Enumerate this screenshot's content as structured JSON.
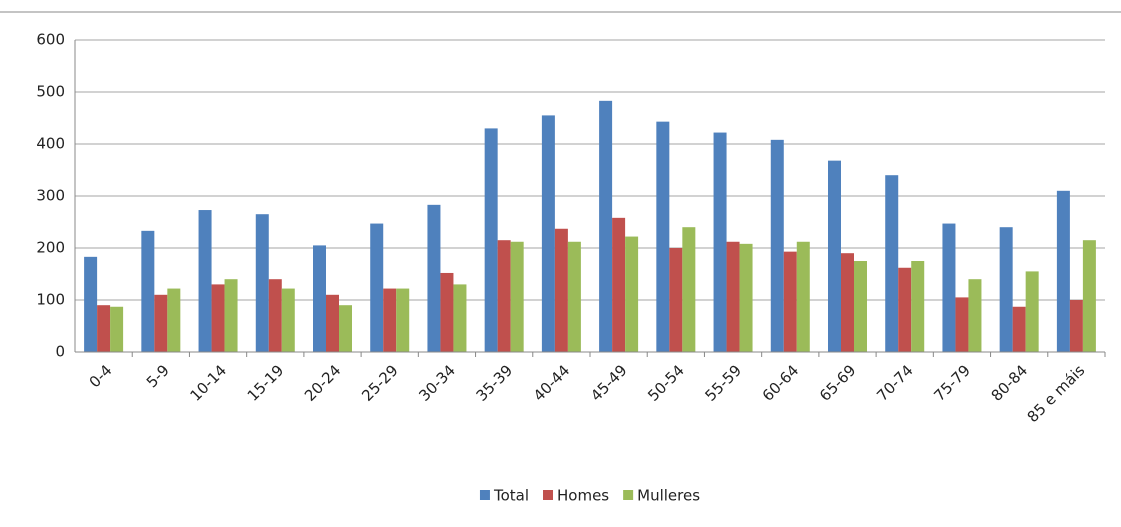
{
  "chart_data": {
    "type": "bar",
    "categories": [
      "0-4",
      "5-9",
      "10-14",
      "15-19",
      "20-24",
      "25-29",
      "30-34",
      "35-39",
      "40-44",
      "45-49",
      "50-54",
      "55-59",
      "60-64",
      "65-69",
      "70-74",
      "75-79",
      "80-84",
      "85 e máis"
    ],
    "series": [
      {
        "name": "Total",
        "color": "#4f81bd",
        "values": [
          183,
          233,
          273,
          265,
          205,
          247,
          283,
          430,
          455,
          483,
          443,
          422,
          408,
          368,
          340,
          247,
          240,
          310
        ]
      },
      {
        "name": "Homes",
        "color": "#c0504d",
        "values": [
          90,
          110,
          130,
          140,
          110,
          122,
          152,
          215,
          237,
          258,
          200,
          212,
          193,
          190,
          162,
          105,
          87,
          100
        ]
      },
      {
        "name": "Mulleres",
        "color": "#9bbb59",
        "values": [
          87,
          122,
          140,
          122,
          90,
          122,
          130,
          212,
          212,
          222,
          240,
          208,
          212,
          175,
          175,
          140,
          155,
          215
        ]
      }
    ],
    "ylim": [
      0,
      600
    ],
    "yticks": [
      0,
      100,
      200,
      300,
      400,
      500,
      600
    ],
    "grid": true,
    "legend": "bottom"
  }
}
